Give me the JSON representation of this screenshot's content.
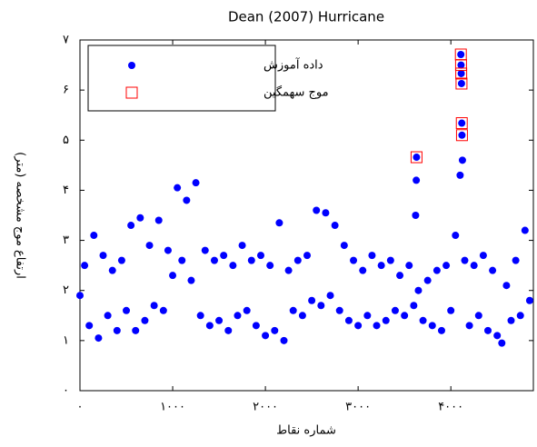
{
  "chart_data": {
    "type": "scatter",
    "title": "Dean (2007) Hurricane",
    "x_label": "شماره نقاط",
    "y_label": "ارتفاع موج مشخصه (متر)",
    "xlim": [
      0,
      4890
    ],
    "ylim": [
      0,
      7
    ],
    "xticks": [
      {
        "value": 0,
        "label": "۰"
      },
      {
        "value": 1000,
        "label": "۱۰۰۰"
      },
      {
        "value": 2000,
        "label": "۲۰۰۰"
      },
      {
        "value": 3000,
        "label": "۳۰۰۰"
      },
      {
        "value": 4000,
        "label": "۴۰۰۰"
      }
    ],
    "yticks": [
      {
        "value": 0,
        "label": "۰"
      },
      {
        "value": 1,
        "label": "۱"
      },
      {
        "value": 2,
        "label": "۲"
      },
      {
        "value": 3,
        "label": "۳"
      },
      {
        "value": 4,
        "label": "۴"
      },
      {
        "value": 5,
        "label": "۵"
      },
      {
        "value": 6,
        "label": "۶"
      },
      {
        "value": 7,
        "label": "۷"
      }
    ],
    "grid": false,
    "legend": "upper left",
    "series": [
      {
        "name": "داده آموزش",
        "color": "#0000ff",
        "marker": "dot",
        "x": [
          0,
          50,
          100,
          150,
          200,
          250,
          300,
          350,
          400,
          450,
          500,
          550,
          600,
          650,
          700,
          750,
          800,
          850,
          900,
          950,
          1000,
          1050,
          1100,
          1150,
          1200,
          1250,
          1300,
          1350,
          1400,
          1450,
          1500,
          1550,
          1600,
          1650,
          1700,
          1750,
          1800,
          1850,
          1900,
          1950,
          2000,
          2050,
          2100,
          2150,
          2200,
          2250,
          2300,
          2350,
          2400,
          2450,
          2500,
          2550,
          2600,
          2650,
          2700,
          2750,
          2800,
          2850,
          2900,
          2950,
          3000,
          3050,
          3100,
          3150,
          3200,
          3250,
          3300,
          3350,
          3400,
          3450,
          3500,
          3550,
          3600,
          3620,
          3627,
          3630,
          3650,
          3700,
          3750,
          3800,
          3850,
          3900,
          3950,
          4000,
          4050,
          4100,
          4108,
          4110,
          4112,
          4115,
          4118,
          4120,
          4125,
          4150,
          4200,
          4250,
          4300,
          4350,
          4400,
          4450,
          4500,
          4550,
          4600,
          4650,
          4700,
          4750,
          4800,
          4850
        ],
        "values": [
          1.9,
          2.5,
          1.3,
          3.1,
          1.05,
          2.7,
          1.5,
          2.4,
          1.2,
          2.6,
          1.6,
          3.3,
          1.2,
          3.45,
          1.4,
          2.9,
          1.7,
          3.4,
          1.6,
          2.8,
          2.3,
          4.05,
          2.6,
          3.8,
          2.2,
          4.15,
          1.5,
          2.8,
          1.3,
          2.6,
          1.4,
          2.7,
          1.2,
          2.5,
          1.5,
          2.9,
          1.6,
          2.6,
          1.3,
          2.7,
          1.1,
          2.5,
          1.2,
          3.35,
          1.0,
          2.4,
          1.6,
          2.6,
          1.5,
          2.7,
          1.8,
          3.6,
          1.7,
          3.55,
          1.9,
          3.3,
          1.6,
          2.9,
          1.4,
          2.6,
          1.3,
          2.4,
          1.5,
          2.7,
          1.3,
          2.5,
          1.4,
          2.6,
          1.6,
          2.3,
          1.5,
          2.5,
          1.7,
          3.5,
          4.2,
          4.66,
          2.0,
          1.4,
          2.2,
          1.3,
          2.4,
          1.2,
          2.5,
          1.6,
          3.1,
          4.3,
          6.71,
          6.5,
          6.33,
          6.13,
          5.34,
          5.1,
          4.6,
          2.6,
          1.3,
          2.5,
          1.5,
          2.7,
          1.2,
          2.4,
          1.1,
          0.95,
          2.1,
          1.4,
          2.6,
          1.5,
          3.2,
          1.8
        ]
      },
      {
        "name": "موج سهمگین",
        "color": "#ff0000",
        "marker": "open-square",
        "x": [
          3630,
          4108,
          4110,
          4112,
          4115,
          4118,
          4120
        ],
        "values": [
          4.66,
          6.71,
          6.5,
          6.33,
          6.13,
          5.34,
          5.1
        ]
      }
    ]
  }
}
